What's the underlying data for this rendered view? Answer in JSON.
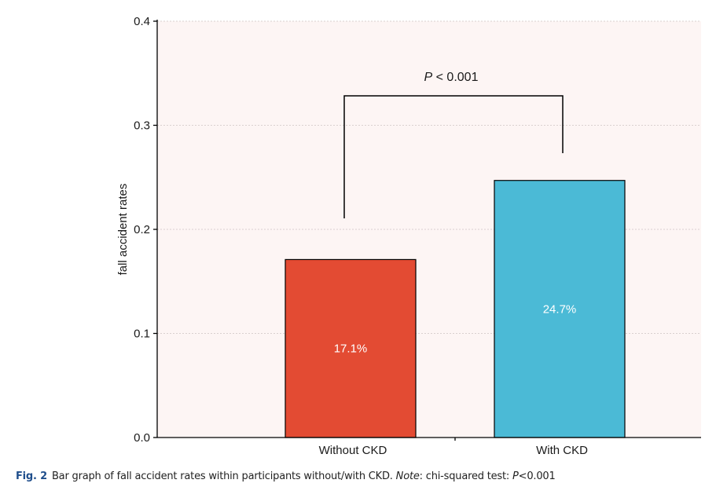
{
  "chart_data": {
    "type": "bar",
    "categories": [
      "Without CKD",
      "With CKD"
    ],
    "values": [
      0.171,
      0.247
    ],
    "data_labels": [
      "17.1%",
      "24.7%"
    ],
    "colors": [
      "#e34b33",
      "#4bbad6"
    ],
    "ylabel": "fall accident rates",
    "ylim": [
      0,
      0.4
    ],
    "yticks": [
      0.0,
      0.1,
      0.2,
      0.3,
      0.4
    ],
    "ytick_labels": [
      "0.0",
      "0.1",
      "0.2",
      "0.3",
      "0.4"
    ],
    "grid": true,
    "plot_background": "#fdf5f4",
    "annotation": {
      "p_symbol": "P",
      "p_rest": " < 0.001"
    }
  },
  "caption": {
    "fig_label": "Fig. 2",
    "text": "Bar graph of fall accident rates within participants without/with CKD. ",
    "note_label": "Note",
    "note_text": ": chi-squared test: ",
    "p_symbol": "P",
    "p_value": "<0.001"
  }
}
